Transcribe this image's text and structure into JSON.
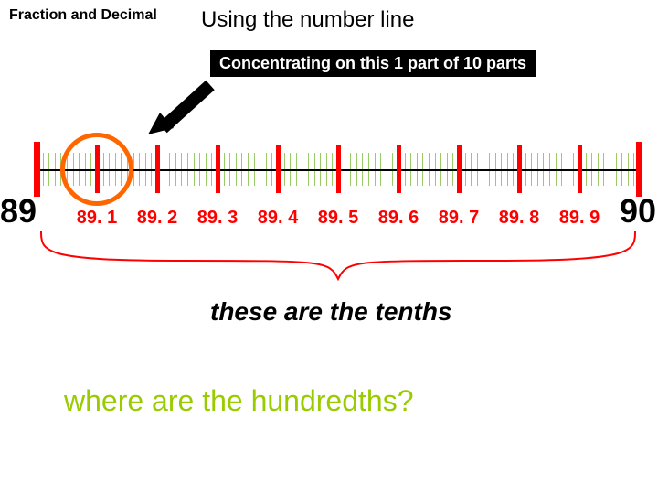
{
  "header": {
    "topic": "Fraction and Decimal",
    "subtitle": "Using the number line",
    "boxText": "Concentrating on this 1 part of 10 parts"
  },
  "typography": {
    "topic_fontsize": 16,
    "subtitle_fontsize": 24,
    "box_fontsize": 18,
    "endlabel_fontsize": 36,
    "ticklabel_fontsize": 20,
    "tenths_fontsize": 28,
    "question_fontsize": 32
  },
  "colors": {
    "bg": "#ffffff",
    "text": "#000000",
    "box_bg": "#000000",
    "box_text": "#ffffff",
    "major_tick": "#ff0000",
    "minor_tick": "#99cc66",
    "circle": "#ff6600",
    "brace": "#ff0000",
    "question": "#99cc00"
  },
  "numberline": {
    "start": 89,
    "end": 90,
    "majorTicks": [
      89.1,
      89.2,
      89.3,
      89.4,
      89.5,
      89.6,
      89.7,
      89.8,
      89.9
    ],
    "majorLabels": [
      "89. 1",
      "89. 2",
      "89. 3",
      "89. 4",
      "89. 5",
      "89. 6",
      "89. 7",
      "89. 8",
      "89. 9"
    ],
    "minorPerMajor": 10,
    "axisWidthPx": 660,
    "circleIndex": 1,
    "circleDiameter": 80
  },
  "captions": {
    "tenths": "these are the tenths",
    "question": "where are the hundredths?"
  }
}
